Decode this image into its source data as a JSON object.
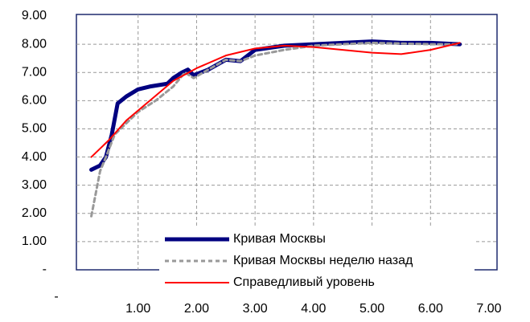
{
  "chart_data": {
    "type": "line",
    "xlim": [
      0,
      7
    ],
    "ylim": [
      0,
      9
    ],
    "xticks": [
      {
        "value": 0,
        "label": "-"
      },
      {
        "value": 1,
        "label": "1.00"
      },
      {
        "value": 2,
        "label": "2.00"
      },
      {
        "value": 3,
        "label": "3.00"
      },
      {
        "value": 4,
        "label": "4.00"
      },
      {
        "value": 5,
        "label": "5.00"
      },
      {
        "value": 6,
        "label": "6.00"
      },
      {
        "value": 7,
        "label": "7.00"
      }
    ],
    "yticks": [
      {
        "value": 0,
        "label": "-"
      },
      {
        "value": 1,
        "label": "1.00"
      },
      {
        "value": 2,
        "label": "2.00"
      },
      {
        "value": 3,
        "label": "3.00"
      },
      {
        "value": 4,
        "label": "4.00"
      },
      {
        "value": 5,
        "label": "5.00"
      },
      {
        "value": 6,
        "label": "6.00"
      },
      {
        "value": 7,
        "label": "7.00"
      },
      {
        "value": 8,
        "label": "8.00"
      },
      {
        "value": 9,
        "label": "9.00"
      }
    ],
    "grid": true,
    "legend": "bottom",
    "series": [
      {
        "name": "Кривая Москвы",
        "color": "#000080",
        "style": "solid",
        "width": 5,
        "x": [
          0.2,
          0.35,
          0.45,
          0.55,
          0.65,
          0.8,
          1.0,
          1.2,
          1.5,
          1.6,
          1.75,
          1.85,
          1.95,
          2.2,
          2.5,
          2.75,
          3.0,
          3.5,
          4.0,
          4.5,
          5.0,
          5.5,
          6.0,
          6.5
        ],
        "values": [
          3.55,
          3.7,
          4.0,
          4.8,
          5.9,
          6.15,
          6.4,
          6.5,
          6.6,
          6.8,
          7.0,
          7.1,
          6.9,
          7.1,
          7.45,
          7.4,
          7.8,
          7.95,
          8.0,
          8.05,
          8.1,
          8.05,
          8.05,
          8.0
        ]
      },
      {
        "name": "Кривая Москвы неделю назад",
        "color": "#999999",
        "style": "dashed",
        "width": 3,
        "x": [
          0.2,
          0.35,
          0.45,
          0.6,
          0.8,
          1.0,
          1.3,
          1.6,
          1.8,
          1.95,
          2.2,
          2.5,
          2.75,
          3.0,
          3.5,
          4.0,
          5.0,
          6.0,
          6.5
        ],
        "values": [
          1.9,
          3.5,
          4.0,
          4.8,
          5.2,
          5.6,
          6.0,
          6.5,
          7.0,
          6.8,
          7.1,
          7.45,
          7.4,
          7.6,
          7.8,
          7.95,
          8.05,
          8.0,
          8.0
        ]
      },
      {
        "name": "Справедливый уровень",
        "color": "#ff0000",
        "style": "solid",
        "width": 2,
        "x": [
          0.2,
          0.5,
          0.8,
          1.2,
          1.6,
          2.0,
          2.5,
          3.0,
          3.5,
          4.0,
          4.5,
          5.0,
          5.5,
          6.0,
          6.5
        ],
        "values": [
          4.0,
          4.6,
          5.3,
          6.0,
          6.7,
          7.15,
          7.6,
          7.85,
          7.95,
          7.9,
          7.8,
          7.7,
          7.65,
          7.8,
          8.05
        ]
      }
    ]
  }
}
